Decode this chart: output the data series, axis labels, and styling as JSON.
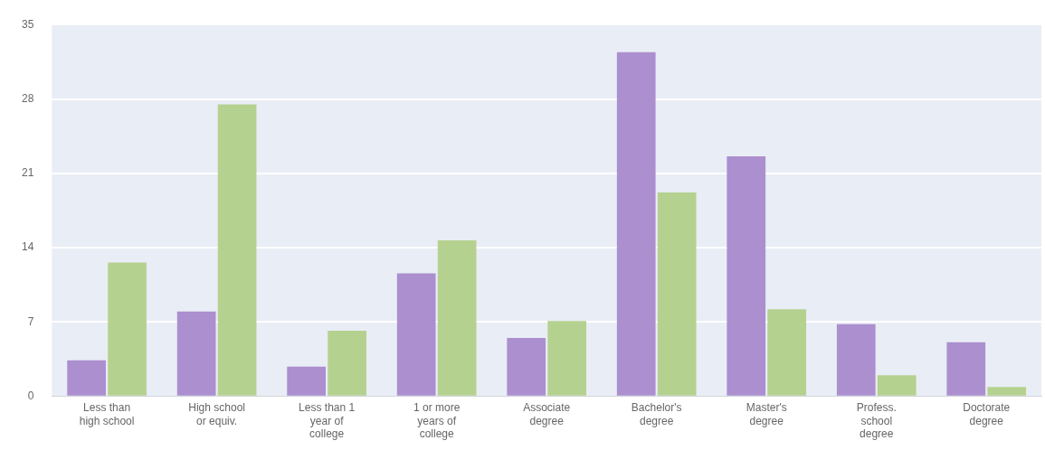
{
  "chart_data": {
    "type": "bar",
    "categories": [
      "Less than high school",
      "High school or equiv.",
      "Less than 1 year of college",
      "1 or more years of college",
      "Associate degree",
      "Bachelor's degree",
      "Master's degree",
      "Profess. school degree",
      "Doctorate degree"
    ],
    "series": [
      {
        "color": "#ab8fcf",
        "values": [
          3.4,
          8.0,
          2.8,
          11.6,
          5.5,
          32.4,
          22.6,
          6.8,
          5.1
        ]
      },
      {
        "color": "#b5d18f",
        "values": [
          12.6,
          27.5,
          6.2,
          14.7,
          7.1,
          19.2,
          8.2,
          2.0,
          0.9
        ]
      }
    ],
    "ylim": [
      0,
      35
    ],
    "yticks": [
      0,
      7,
      14,
      21,
      28,
      35
    ],
    "grid": "y"
  }
}
